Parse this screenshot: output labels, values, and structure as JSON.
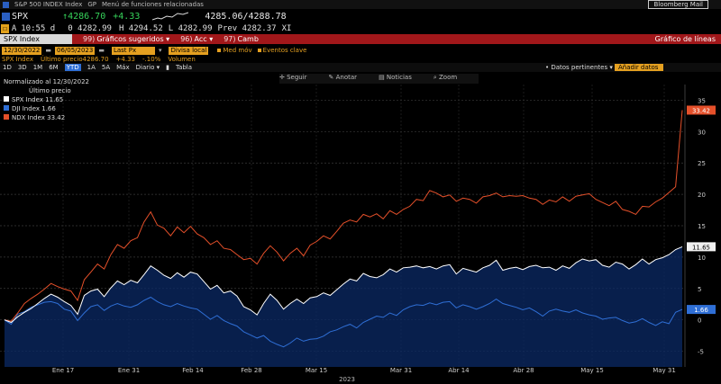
{
  "header": {
    "row1": {
      "ticker_menu": "S&P 500 INDEX Index",
      "gp": "GP",
      "menu": "Menú de funciones relacionadas",
      "mail": "Bloomberg Mail"
    },
    "row2": {
      "ticker": "SPX",
      "last": "↑4286.70",
      "change": "+4.33",
      "bidask": "4285.06/4288.78"
    },
    "row3": {
      "a": "A",
      "time": "10:55 d",
      "open": "0 4282.99",
      "high": "H 4294.52",
      "low": "L 4282.99",
      "prev": "Prev 4282.37",
      "xl": "XI"
    },
    "red_bar": {
      "security": "SPX Index",
      "item1_num": "99)",
      "item1": "Gráficos sugeridos",
      "item2_num": "96)",
      "item2": "Acc",
      "item3_num": "97)",
      "item3": "Camb",
      "right": "Gráfico de líneas"
    },
    "row5": {
      "start": "12/30/2022",
      "end": "06/05/2023",
      "last_px": "Last Px",
      "divisa": "Divisa local",
      "med": "Med móv",
      "eventos": "Eventos clave"
    },
    "row6": {
      "name": "SPX Index",
      "label": "Último precio",
      "price": "4286.70",
      "chg": "+4.33",
      "pct": "-.10%",
      "vol": "Volumen"
    },
    "row7": {
      "periods": [
        "1D",
        "3D",
        "1M",
        "6M",
        "YTD",
        "1A",
        "5A",
        "Máx"
      ],
      "selected": "YTD",
      "diario": "Diario ▾",
      "tabla": "Tabla",
      "datos": "• Datos pertinentes ▾",
      "anadir": "Añadir datos"
    }
  },
  "tools": {
    "seguir": "Seguir",
    "anotar": "Anotar",
    "noticias": "Noticias",
    "zoom": "Zoom"
  },
  "legend": {
    "line1": "Normalizado al 12/30/2022",
    "line2": "Último precio",
    "items": [
      {
        "label": "SPX Index 11.65",
        "color": "#ffffff"
      },
      {
        "label": "DJI Index  1.66",
        "color": "#2f6fd6"
      },
      {
        "label": "NDX Index 33.42",
        "color": "#e5502a"
      }
    ]
  },
  "chart_data": {
    "type": "line",
    "x_ticks": [
      "Ene 17",
      "Ene 31",
      "Feb 14",
      "Feb 28",
      "Mar 15",
      "Mar 31",
      "Abr 14",
      "Abr 28",
      "May 15",
      "May 31"
    ],
    "xlabel": "2023",
    "y_ticks": [
      35,
      30,
      25,
      20,
      15,
      10,
      5,
      0,
      -5
    ],
    "ylim": [
      -7.5,
      37.5
    ],
    "series": [
      {
        "name": "SPX Index",
        "color": "#ffffff",
        "last_label": "11.65",
        "values": [
          0,
          -0.4,
          0.5,
          1.2,
          1.8,
          2.6,
          3.4,
          4.1,
          3.6,
          2.9,
          2.3,
          0.9,
          3.9,
          4.6,
          4.9,
          3.7,
          5.1,
          6.2,
          5.6,
          6.3,
          5.9,
          7.2,
          8.6,
          7.9,
          7.1,
          6.6,
          7.5,
          6.8,
          7.6,
          7.3,
          6.1,
          4.9,
          5.5,
          4.3,
          4.6,
          3.8,
          2.1,
          1.6,
          0.8,
          2.6,
          4.1,
          3.1,
          1.7,
          2.6,
          3.3,
          2.6,
          3.5,
          3.7,
          4.3,
          3.9,
          4.8,
          5.7,
          6.5,
          6.2,
          7.4,
          6.9,
          6.7,
          7.2,
          8.1,
          7.6,
          8.3,
          8.4,
          8.6,
          8.3,
          8.5,
          8.1,
          8.6,
          8.8,
          7.3,
          8.2,
          7.9,
          7.6,
          8.3,
          8.7,
          9.5,
          7.9,
          8.2,
          8.4,
          8.0,
          8.5,
          8.7,
          8.3,
          8.4,
          7.9,
          8.6,
          8.2,
          9.1,
          9.7,
          9.4,
          9.6,
          8.7,
          8.4,
          9.2,
          8.9,
          8.1,
          8.8,
          9.7,
          8.9,
          9.6,
          9.9,
          10.4,
          11.2,
          11.65
        ]
      },
      {
        "name": "DJI Index",
        "color": "#2f6fd6",
        "last_label": "1.66",
        "values": [
          0,
          -0.7,
          0.9,
          1.3,
          2.0,
          2.4,
          2.8,
          2.9,
          2.6,
          1.7,
          1.4,
          -0.1,
          1.1,
          2.1,
          2.4,
          1.5,
          2.2,
          2.6,
          2.2,
          2.0,
          2.4,
          3.1,
          3.6,
          2.9,
          2.4,
          2.1,
          2.6,
          2.2,
          1.9,
          1.7,
          0.9,
          0.1,
          0.7,
          -0.1,
          -0.6,
          -1.0,
          -1.9,
          -2.4,
          -2.9,
          -2.5,
          -3.4,
          -3.9,
          -4.3,
          -3.7,
          -2.9,
          -3.4,
          -3.1,
          -3.0,
          -2.6,
          -1.9,
          -1.6,
          -1.1,
          -0.7,
          -1.3,
          -0.4,
          0.1,
          0.6,
          0.4,
          1.1,
          0.7,
          1.6,
          2.1,
          2.4,
          2.3,
          2.7,
          2.4,
          2.8,
          2.9,
          1.9,
          2.4,
          2.1,
          1.7,
          2.1,
          2.6,
          3.3,
          2.6,
          2.3,
          2.0,
          1.6,
          1.9,
          1.3,
          0.6,
          1.4,
          1.7,
          1.4,
          1.2,
          1.6,
          1.1,
          0.8,
          0.6,
          0.1,
          0.3,
          0.4,
          -0.1,
          -0.5,
          -0.3,
          0.2,
          -0.4,
          -0.9,
          -0.3,
          -0.6,
          1.2,
          1.66
        ]
      },
      {
        "name": "NDX Index",
        "color": "#e5502a",
        "last_label": "33.42",
        "values": [
          0,
          -0.2,
          1.1,
          2.6,
          3.4,
          4.1,
          4.9,
          5.8,
          5.3,
          4.9,
          4.6,
          3.1,
          6.4,
          7.6,
          8.9,
          8.1,
          10.4,
          12.0,
          11.4,
          12.6,
          13.1,
          15.6,
          17.2,
          15.1,
          14.6,
          13.4,
          14.8,
          13.9,
          14.9,
          13.7,
          13.1,
          12.0,
          12.6,
          11.4,
          11.2,
          10.4,
          9.6,
          9.8,
          8.9,
          10.6,
          11.8,
          10.8,
          9.4,
          10.6,
          11.4,
          10.2,
          11.9,
          12.5,
          13.4,
          12.9,
          14.1,
          15.4,
          15.9,
          15.6,
          16.8,
          16.4,
          16.9,
          16.1,
          17.4,
          16.8,
          17.6,
          18.1,
          19.2,
          19.0,
          20.6,
          20.2,
          19.6,
          19.9,
          18.9,
          19.4,
          19.2,
          18.6,
          19.6,
          19.8,
          20.2,
          19.6,
          19.8,
          19.7,
          19.8,
          19.4,
          19.2,
          18.4,
          19.1,
          18.8,
          19.6,
          18.9,
          19.7,
          19.9,
          20.1,
          19.2,
          18.7,
          18.2,
          18.9,
          17.6,
          17.3,
          16.8,
          18.1,
          18.0,
          18.8,
          19.4,
          20.3,
          21.2,
          33.42
        ]
      }
    ],
    "grid": "horizontal dashed"
  }
}
